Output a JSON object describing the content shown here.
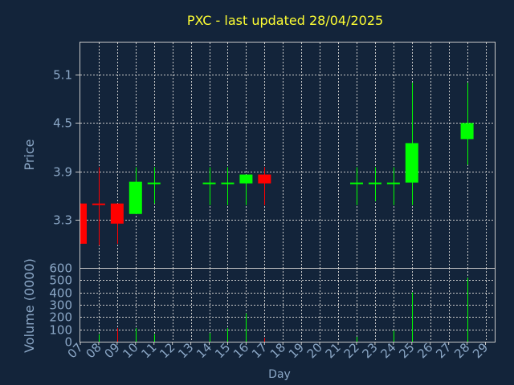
{
  "chart_data": [
    {
      "type": "candlestick",
      "title": "PXC - last updated 28/04/2025",
      "ylabel": "Price",
      "ylim": [
        2.7,
        5.5
      ],
      "yticks": [
        "3.3",
        "3.9",
        "4.5",
        "5.1"
      ],
      "grid": true,
      "candles": [
        {
          "x": "07",
          "open": 3.5,
          "high": 3.5,
          "low": 3.0,
          "close": 3.0
        },
        {
          "x": "08",
          "open": 3.5,
          "high": 3.95,
          "low": 2.98,
          "close": 3.48
        },
        {
          "x": "09",
          "open": 3.5,
          "high": 3.5,
          "low": 3.0,
          "close": 3.25
        },
        {
          "x": "10",
          "open": 3.37,
          "high": 3.95,
          "low": 3.37,
          "close": 3.77
        },
        {
          "x": "11",
          "open": 3.76,
          "high": 3.95,
          "low": 3.5,
          "close": 3.76
        },
        {
          "x": "14",
          "open": 3.76,
          "high": 3.95,
          "low": 3.48,
          "close": 3.76
        },
        {
          "x": "15",
          "open": 3.76,
          "high": 3.95,
          "low": 3.48,
          "close": 3.76
        },
        {
          "x": "16",
          "open": 3.75,
          "high": 3.86,
          "low": 3.48,
          "close": 3.86
        },
        {
          "x": "17",
          "open": 3.86,
          "high": 3.95,
          "low": 3.48,
          "close": 3.75
        },
        {
          "x": "22",
          "open": 3.76,
          "high": 3.95,
          "low": 3.48,
          "close": 3.76
        },
        {
          "x": "23",
          "open": 3.76,
          "high": 3.95,
          "low": 3.53,
          "close": 3.76
        },
        {
          "x": "24",
          "open": 3.76,
          "high": 3.95,
          "low": 3.48,
          "close": 3.76
        },
        {
          "x": "25",
          "open": 3.76,
          "high": 5.0,
          "low": 3.48,
          "close": 4.25
        },
        {
          "x": "28",
          "open": 4.3,
          "high": 5.0,
          "low": 3.98,
          "close": 4.5
        }
      ]
    },
    {
      "type": "bar",
      "xlabel": "Day",
      "ylabel": "Volume (0000)",
      "ylim": [
        0,
        600
      ],
      "yticks": [
        "0",
        "100",
        "200",
        "300",
        "400",
        "500",
        "600"
      ],
      "categories": [
        "07",
        "08",
        "09",
        "10",
        "11",
        "12",
        "13",
        "14",
        "15",
        "16",
        "17",
        "18",
        "19",
        "20",
        "21",
        "22",
        "23",
        "24",
        "25",
        "26",
        "27",
        "28",
        "29"
      ],
      "volumes": [
        {
          "x": "08",
          "value": 60,
          "direction": "up"
        },
        {
          "x": "09",
          "value": 110,
          "direction": "down"
        },
        {
          "x": "10",
          "value": 110,
          "direction": "up"
        },
        {
          "x": "11",
          "value": 60,
          "direction": "up"
        },
        {
          "x": "14",
          "value": 70,
          "direction": "up"
        },
        {
          "x": "15",
          "value": 110,
          "direction": "up"
        },
        {
          "x": "16",
          "value": 230,
          "direction": "up"
        },
        {
          "x": "17",
          "value": 30,
          "direction": "down"
        },
        {
          "x": "22",
          "value": 40,
          "direction": "up"
        },
        {
          "x": "24",
          "value": 90,
          "direction": "up"
        },
        {
          "x": "25",
          "value": 400,
          "direction": "up"
        },
        {
          "x": "28",
          "value": 520,
          "direction": "up"
        }
      ]
    }
  ],
  "colors": {
    "background": "#13243a",
    "grid": "#c8c8c8",
    "axis_text": "#8ba7c6",
    "title": "#ffff33",
    "up": "#00ff00",
    "down": "#ff0000"
  }
}
